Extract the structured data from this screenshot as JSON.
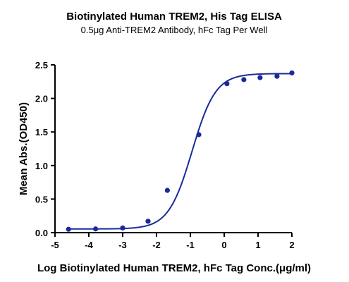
{
  "chart_data": {
    "type": "scatter",
    "title": "Biotinylated Human TREM2, His Tag ELISA",
    "subtitle": "0.5μg Anti-TREM2 Antibody, hFc Tag Per Well",
    "xlabel": "Log Biotinylated Human TREM2, hFc Tag Conc.(μg/ml)",
    "ylabel": "Mean Abs.(OD450)",
    "xlim": [
      -5,
      2
    ],
    "ylim": [
      0,
      2.5
    ],
    "x_ticks": [
      "-5",
      "-4",
      "-3",
      "-2",
      "-1",
      "0",
      "1",
      "2"
    ],
    "y_ticks": [
      "0.0",
      "0.5",
      "1.0",
      "1.5",
      "2.0",
      "2.5"
    ],
    "grid": false,
    "color": "#1a2a9c",
    "points": [
      {
        "x": -4.6,
        "y": 0.05
      },
      {
        "x": -3.8,
        "y": 0.055
      },
      {
        "x": -3.0,
        "y": 0.07
      },
      {
        "x": -2.25,
        "y": 0.17
      },
      {
        "x": -1.68,
        "y": 0.63
      },
      {
        "x": -0.75,
        "y": 1.46
      },
      {
        "x": 0.08,
        "y": 2.22
      },
      {
        "x": 0.58,
        "y": 2.28
      },
      {
        "x": 1.06,
        "y": 2.31
      },
      {
        "x": 1.56,
        "y": 2.33
      },
      {
        "x": 2.0,
        "y": 2.38
      }
    ],
    "fit": {
      "bottom": 0.055,
      "top": 2.37,
      "logEC50": -0.95,
      "hill": 1.25
    }
  }
}
